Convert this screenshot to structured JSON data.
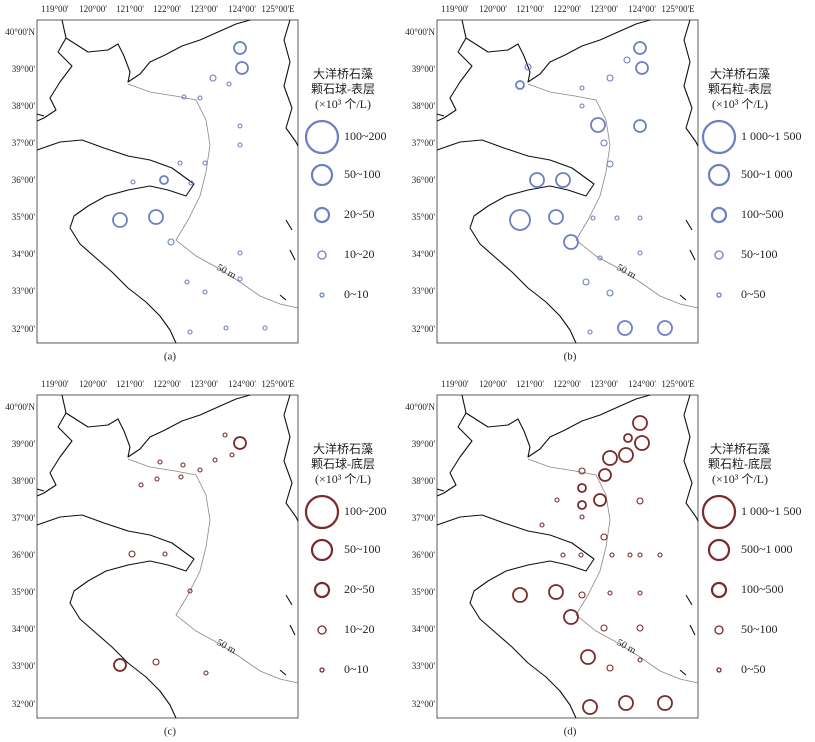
{
  "lon_labels": [
    "119°00'",
    "120°00'",
    "121°00'",
    "122°00'",
    "123°00'",
    "124°00'",
    "125°00'E"
  ],
  "lat_labels": [
    "40°00'N",
    "39°00'",
    "38°00'",
    "37°00'",
    "36°00'",
    "35°00'",
    "34°00'",
    "33°00'",
    "32°00'"
  ],
  "contour_label": "50 m",
  "panels": [
    {
      "caption": "(a)",
      "legend_title": [
        "大洋桥石藻",
        "颗石球-表层",
        "(×10³ 个/L)"
      ],
      "legend_items": [
        "100~200",
        "50~100",
        "20~50",
        "10~20",
        "0~10"
      ]
    },
    {
      "caption": "(b)",
      "legend_title": [
        "大洋桥石藻",
        "颗石粒-表层",
        "(×10³ 个/L)"
      ],
      "legend_items": [
        "1 000~1 500",
        "500~1 000",
        "100~500",
        "50~100",
        "0~50"
      ]
    },
    {
      "caption": "(c)",
      "legend_title": [
        "大洋桥石藻",
        "颗石球-底层",
        "(×10³ 个/L)"
      ],
      "legend_items": [
        "100~200",
        "50~100",
        "20~50",
        "10~20",
        "0~10"
      ]
    },
    {
      "caption": "(d)",
      "legend_title": [
        "大洋桥石藻",
        "颗石粒-底层",
        "(×10³ 个/L)"
      ],
      "legend_items": [
        "1 000~1 500",
        "500~1 000",
        "100~500",
        "50~100",
        "0~50"
      ]
    }
  ]
}
